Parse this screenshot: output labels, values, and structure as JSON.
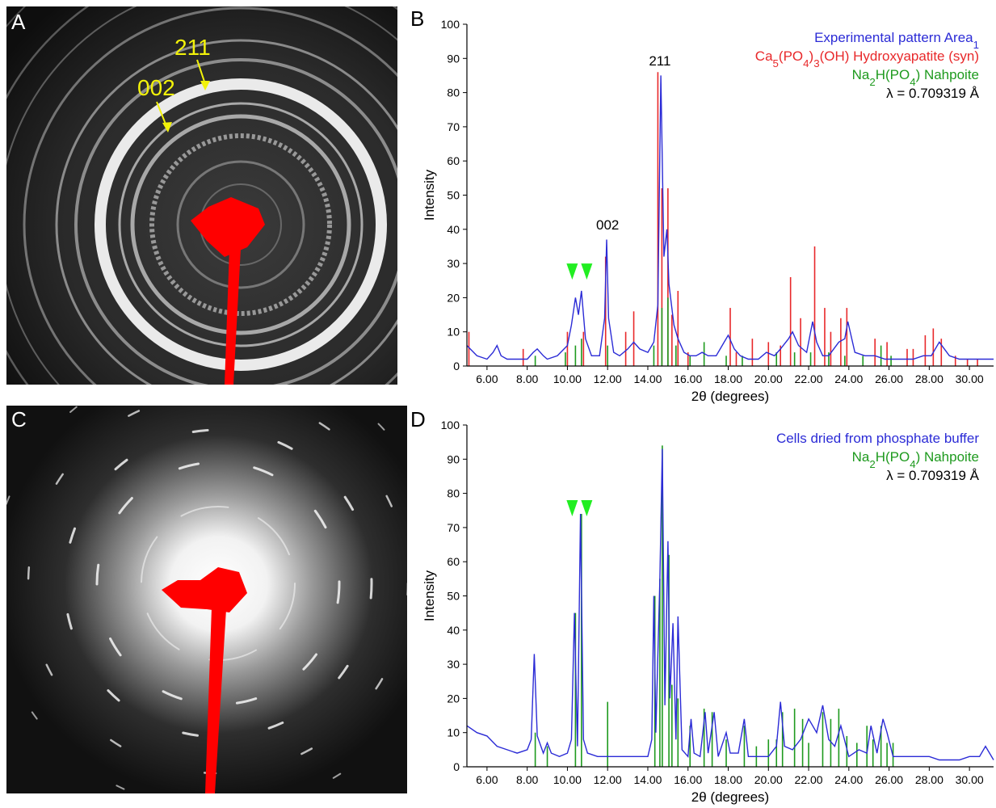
{
  "panels": {
    "a": {
      "letter": "A",
      "ring_labels": [
        "211",
        "002"
      ]
    },
    "b": {
      "letter": "B"
    },
    "c": {
      "letter": "C"
    },
    "d": {
      "letter": "D"
    }
  },
  "colors": {
    "experimental": "#2b2bd6",
    "hydroxyapatite": "#e8282a",
    "nahpoite": "#1e9a1e",
    "marker_green": "#22ee22",
    "annotation_yellow": "#f2f20a",
    "beamstop_red": "#ff0000"
  },
  "chart_data": [
    {
      "id": "B",
      "type": "line",
      "xlabel": "2θ (degrees)",
      "ylabel": "Intensity",
      "xlim": [
        5.0,
        31.2
      ],
      "ylim": [
        0,
        100
      ],
      "xticks": [
        "6.00",
        "8.00",
        "10.00",
        "12.00",
        "14.00",
        "16.00",
        "18.00",
        "20.00",
        "22.00",
        "24.00",
        "26.00",
        "28.00",
        "30.00"
      ],
      "yticks": [
        "0",
        "10",
        "20",
        "30",
        "40",
        "50",
        "60",
        "70",
        "80",
        "90",
        "100"
      ],
      "legend": [
        {
          "text": "Experimental pattern Area1",
          "color": "#2b2bd6"
        },
        {
          "text": "Ca5(PO4)3(OH) Hydroxyapatite (syn)",
          "color": "#e8282a"
        },
        {
          "text": "Na2H(PO4) Nahpoite",
          "color": "#1e9a1e"
        },
        {
          "text": "λ = 0.709319 Å",
          "color": "#000000"
        }
      ],
      "peak_labels": [
        {
          "text": "211",
          "x": 14.6,
          "y": 87
        },
        {
          "text": "002",
          "x": 12.0,
          "y": 39
        }
      ],
      "markers": [
        {
          "x": 10.6,
          "y": 30
        }
      ],
      "series": [
        {
          "name": "Experimental pattern Area1",
          "x": [
            5.0,
            5.5,
            6.0,
            6.3,
            6.5,
            6.7,
            7.0,
            7.5,
            8.0,
            8.3,
            8.5,
            8.8,
            9.0,
            9.5,
            10.0,
            10.2,
            10.4,
            10.55,
            10.7,
            10.9,
            11.2,
            11.6,
            11.85,
            11.95,
            12.05,
            12.3,
            12.6,
            13.0,
            13.3,
            13.6,
            14.0,
            14.3,
            14.5,
            14.65,
            14.8,
            14.95,
            15.05,
            15.3,
            15.5,
            15.8,
            16.1,
            16.4,
            16.7,
            17.0,
            17.4,
            17.8,
            18.0,
            18.3,
            18.6,
            19.0,
            19.5,
            19.9,
            20.3,
            20.6,
            21.0,
            21.2,
            21.5,
            21.9,
            22.2,
            22.4,
            22.7,
            23.0,
            23.5,
            23.8,
            23.95,
            24.3,
            24.8,
            25.3,
            25.8,
            26.2,
            26.7,
            27.2,
            27.7,
            28.1,
            28.5,
            29.0,
            29.5,
            30.0,
            30.5,
            31.2
          ],
          "y": [
            6,
            3,
            2,
            4,
            6,
            3,
            2,
            2,
            2,
            4,
            5,
            3,
            2,
            3,
            6,
            12,
            20,
            15,
            22,
            8,
            3,
            3,
            14,
            37,
            14,
            4,
            3,
            5,
            7,
            5,
            4,
            7,
            18,
            85,
            32,
            40,
            24,
            12,
            8,
            4,
            3,
            3,
            4,
            3,
            3,
            7,
            9,
            5,
            3,
            2,
            2,
            4,
            3,
            5,
            8,
            10,
            6,
            4,
            13,
            7,
            3,
            3,
            7,
            8,
            13,
            4,
            3,
            3,
            2,
            2,
            2,
            2,
            3,
            3,
            7,
            3,
            2,
            2,
            2,
            2
          ]
        }
      ],
      "sticks": [
        {
          "name": "Ca5(PO4)3(OH) Hydroxyapatite (syn)",
          "x": [
            5.1,
            7.8,
            10.0,
            10.8,
            11.9,
            12.9,
            13.3,
            14.5,
            14.7,
            15.0,
            15.2,
            15.5,
            16.0,
            18.1,
            18.4,
            19.2,
            20.0,
            20.6,
            21.1,
            21.6,
            22.3,
            22.8,
            23.1,
            23.6,
            23.9,
            25.3,
            25.9,
            26.9,
            27.2,
            27.8,
            28.2,
            28.6,
            29.3,
            29.9,
            30.4
          ],
          "y": [
            10,
            5,
            10,
            10,
            32,
            10,
            16,
            86,
            52,
            52,
            15,
            22,
            4,
            17,
            4,
            8,
            7,
            6,
            26,
            14,
            35,
            17,
            10,
            14,
            17,
            8,
            7,
            5,
            5,
            9,
            11,
            8,
            3,
            2,
            2
          ]
        },
        {
          "name": "Na2H(PO4) Nahpoite",
          "x": [
            8.4,
            9.9,
            10.4,
            10.7,
            12.0,
            14.3,
            14.7,
            15.0,
            15.4,
            16.1,
            16.8,
            17.9,
            18.7,
            20.4,
            21.3,
            22.1,
            23.0,
            23.8,
            24.7,
            25.6,
            26.1
          ],
          "y": [
            3,
            4,
            6,
            8,
            6,
            6,
            17,
            20,
            6,
            3,
            7,
            3,
            3,
            4,
            4,
            4,
            4,
            3,
            3,
            6,
            3
          ]
        }
      ]
    },
    {
      "id": "D",
      "type": "line",
      "xlabel": "2θ (degrees)",
      "ylabel": "Intensity",
      "xlim": [
        5.0,
        31.2
      ],
      "ylim": [
        0,
        100
      ],
      "xticks": [
        "6.00",
        "8.00",
        "10.00",
        "12.00",
        "14.00",
        "16.00",
        "18.00",
        "20.00",
        "22.00",
        "24.00",
        "26.00",
        "28.00",
        "30.00"
      ],
      "yticks": [
        "0",
        "10",
        "20",
        "30",
        "40",
        "50",
        "60",
        "70",
        "80",
        "90",
        "100"
      ],
      "legend": [
        {
          "text": "Cells dried from phosphate buffer",
          "color": "#2b2bd6"
        },
        {
          "text": "Na2H(PO4) Nahpoite",
          "color": "#1e9a1e"
        },
        {
          "text": "λ = 0.709319 Å",
          "color": "#000000"
        }
      ],
      "peak_labels": [],
      "markers": [
        {
          "x": 10.6,
          "y": 78
        }
      ],
      "series": [
        {
          "name": "Cells dried from phosphate buffer",
          "x": [
            5.0,
            5.5,
            6.0,
            6.5,
            7.0,
            7.5,
            8.0,
            8.2,
            8.35,
            8.5,
            8.8,
            9.0,
            9.2,
            9.6,
            10.0,
            10.2,
            10.35,
            10.5,
            10.65,
            10.8,
            11.0,
            11.5,
            12.0,
            12.5,
            13.0,
            13.5,
            14.0,
            14.2,
            14.3,
            14.4,
            14.6,
            14.72,
            14.85,
            15.0,
            15.1,
            15.25,
            15.4,
            15.5,
            15.7,
            16.0,
            16.15,
            16.3,
            16.6,
            16.85,
            17.0,
            17.3,
            17.5,
            17.9,
            18.1,
            18.5,
            18.8,
            19.0,
            19.5,
            20.0,
            20.4,
            20.6,
            20.8,
            21.2,
            21.6,
            22.0,
            22.4,
            22.7,
            23.0,
            23.3,
            23.6,
            24.0,
            24.5,
            24.9,
            25.1,
            25.4,
            25.7,
            25.9,
            26.2,
            26.7,
            27.3,
            28.0,
            28.5,
            29.0,
            29.5,
            30.0,
            30.5,
            30.8,
            31.2
          ],
          "y": [
            12,
            10,
            9,
            6,
            5,
            4,
            5,
            8,
            33,
            9,
            4,
            7,
            4,
            3,
            4,
            8,
            45,
            6,
            74,
            8,
            4,
            3,
            3,
            3,
            3,
            3,
            3,
            8,
            50,
            10,
            55,
            93,
            18,
            66,
            20,
            42,
            8,
            44,
            5,
            3,
            14,
            4,
            3,
            16,
            4,
            16,
            3,
            10,
            4,
            4,
            14,
            3,
            3,
            3,
            6,
            19,
            6,
            5,
            8,
            14,
            10,
            18,
            8,
            6,
            12,
            3,
            5,
            4,
            12,
            4,
            14,
            10,
            3,
            3,
            3,
            3,
            2,
            2,
            2,
            3,
            3,
            6,
            2
          ]
        }
      ],
      "sticks": [
        {
          "name": "Na2H(PO4) Nahpoite",
          "x": [
            8.4,
            9.0,
            10.4,
            10.7,
            12.0,
            14.35,
            14.6,
            14.72,
            15.05,
            15.2,
            15.5,
            16.1,
            16.8,
            17.2,
            17.9,
            18.8,
            19.4,
            20.0,
            20.4,
            20.7,
            21.3,
            21.7,
            22.0,
            22.7,
            23.1,
            23.5,
            23.9,
            24.4,
            24.9,
            25.2,
            25.6,
            25.9,
            26.2
          ],
          "y": [
            10,
            6,
            45,
            74,
            19,
            50,
            55,
            94,
            62,
            24,
            20,
            12,
            17,
            16,
            8,
            12,
            6,
            8,
            8,
            16,
            17,
            14,
            7,
            16,
            14,
            17,
            9,
            7,
            12,
            8,
            12,
            7,
            7
          ]
        }
      ]
    }
  ]
}
